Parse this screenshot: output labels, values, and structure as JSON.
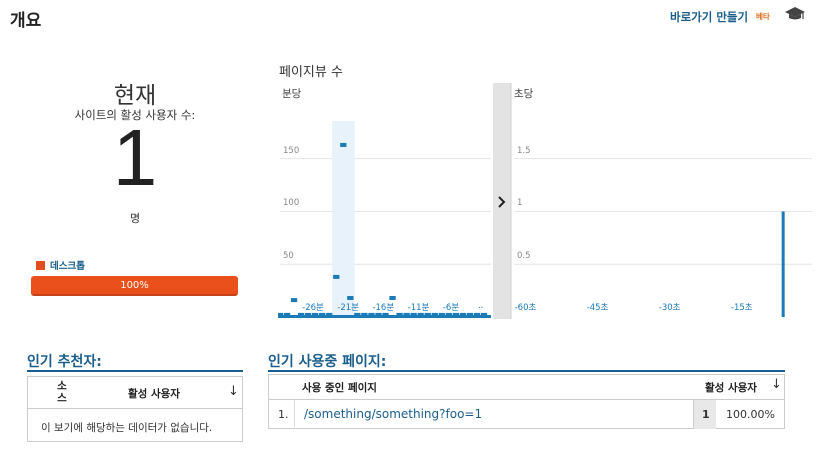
{
  "header": {
    "title": "개요",
    "shortcut_label": "바로가기 만들기",
    "beta_label": "베타",
    "cap_icon": "graduation-cap-icon"
  },
  "current": {
    "label": "현재",
    "sub_label": "사이트의 활성 사용자 수:",
    "count": "1",
    "unit": "명",
    "legend_label": "데스크톱",
    "legend_color": "#e14d1f",
    "device_bar_label": "100%",
    "device_share": 1.0
  },
  "chart": {
    "title": "페이지뷰 수",
    "expand_icon": "chevron-right-icon"
  },
  "chart_data": [
    {
      "type": "bar",
      "panel_label": "분당",
      "y_ticks": [
        "150",
        "100",
        "50"
      ],
      "y_tick_values": [
        150,
        100,
        50
      ],
      "ylim": [
        0,
        180
      ],
      "x_tick_labels": [
        "-26분",
        "-21분",
        "-16분",
        "-11분",
        "-6분",
        ".."
      ],
      "x_tick_values": [
        -26,
        -21,
        -16,
        -11,
        -6,
        -1
      ],
      "xlim": [
        -30,
        0
      ],
      "x": [
        -30,
        -29,
        -28,
        -27,
        -26,
        -25,
        -24,
        -23,
        -22,
        -21,
        -20,
        -19,
        -18,
        -17,
        -16,
        -15,
        -14,
        -13,
        -12,
        -11,
        -10,
        -9,
        -8,
        -7,
        -6,
        -5,
        -4,
        -3,
        -2,
        -1
      ],
      "values": [
        2,
        2,
        16,
        2,
        2,
        2,
        2,
        2,
        38,
        163,
        18,
        2,
        2,
        2,
        2,
        2,
        18,
        2,
        2,
        2,
        2,
        2,
        2,
        2,
        2,
        2,
        2,
        2,
        2,
        2
      ],
      "highlight_range": [
        -22,
        -20
      ]
    },
    {
      "type": "bar",
      "panel_label": "초당",
      "y_ticks": [
        "1.5",
        "1",
        "0.5"
      ],
      "y_tick_values": [
        1.5,
        1,
        0.5
      ],
      "ylim": [
        0,
        1.8
      ],
      "x_tick_labels": [
        "-60초",
        "-45초",
        "-30초",
        "-15초"
      ],
      "x_tick_values": [
        -60,
        -45,
        -30,
        -15
      ],
      "xlim": [
        -62,
        0
      ],
      "x": [
        -6
      ],
      "values": [
        1
      ]
    }
  ],
  "referrers": {
    "title": "인기 추천자:",
    "col_source": "소스",
    "col_active": "활성 사용자",
    "empty_message": "이 보기에 해당하는 데이터가 없습니다.",
    "sort_icon": "arrow-down-icon"
  },
  "pages": {
    "title": "인기 사용중 페이지:",
    "col_page": "사용 중인 페이지",
    "col_active": "활성 사용자",
    "sort_icon": "arrow-down-icon",
    "rows": [
      {
        "rank": "1.",
        "page": "/something/something?foo=1",
        "count": "1",
        "percent": "100.00%"
      }
    ]
  }
}
